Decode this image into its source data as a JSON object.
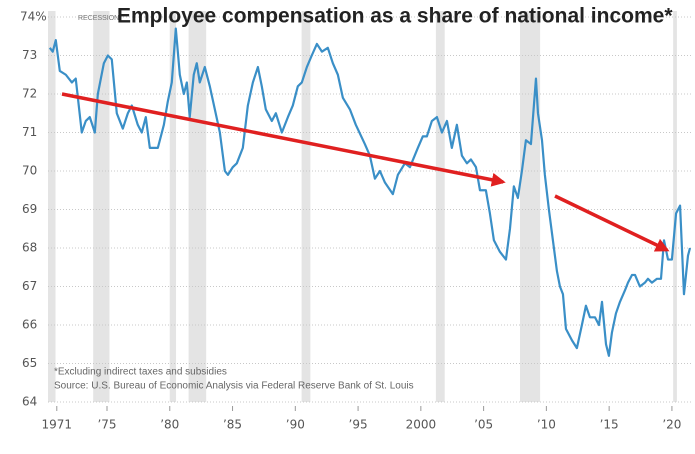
{
  "chart_data": {
    "type": "line",
    "title": "Employee compensation as a share of national income*",
    "recession_label": "RECESSION",
    "footnote": "*Excluding indirect taxes and subsidies",
    "source": "Source: U.S. Bureau of Economic Analysis via Federal Reserve Bank of St. Louis",
    "recessions": [
      [
        1969.9,
        1970.9
      ],
      [
        1973.9,
        1975.2
      ],
      [
        1980.0,
        1980.5
      ],
      [
        1981.5,
        1982.9
      ],
      [
        1990.5,
        1991.2
      ],
      [
        2001.2,
        2001.9
      ],
      [
        2007.9,
        2009.5
      ],
      [
        2020.1,
        2020.4
      ]
    ],
    "recession_color": "#e4e4e4",
    "grid": true,
    "xlim": [
      1970.3,
      2021.6
    ],
    "ylim": [
      64,
      74
    ],
    "xticks": [
      1971,
      {
        "value": 1975,
        "label": "’75"
      },
      {
        "value": 1980,
        "label": "’80"
      },
      {
        "value": 1985,
        "label": "’85"
      },
      {
        "value": 1990,
        "label": "’90"
      },
      {
        "value": 1995,
        "label": "’95"
      },
      2000,
      {
        "value": 2005,
        "label": "’05"
      },
      {
        "value": 2010,
        "label": "’10"
      },
      {
        "value": 2015,
        "label": "’15"
      },
      {
        "value": 2020,
        "label": "’20"
      }
    ],
    "yticks": [
      64,
      65,
      66,
      67,
      68,
      69,
      70,
      71,
      72,
      73,
      {
        "value": 74,
        "label": "74%"
      }
    ],
    "x": [
      1970.44,
      1970.68,
      1970.92,
      1971.24,
      1971.72,
      1972.2,
      1972.51,
      1972.99,
      1973.31,
      1973.63,
      1974.03,
      1974.27,
      1974.75,
      1975.07,
      1975.38,
      1975.78,
      1976.02,
      1976.26,
      1976.66,
      1976.98,
      1977.45,
      1977.77,
      1978.09,
      1978.41,
      1979.05,
      1979.53,
      1979.84,
      1980.16,
      1980.48,
      1980.8,
      1981.12,
      1981.36,
      1981.59,
      1981.91,
      1982.15,
      1982.39,
      1982.79,
      1983.19,
      1983.59,
      1983.99,
      1984.39,
      1984.63,
      1985.02,
      1985.34,
      1985.82,
      1986.22,
      1986.62,
      1987.02,
      1987.33,
      1987.65,
      1988.13,
      1988.45,
      1988.93,
      1989.41,
      1989.8,
      1990.2,
      1990.52,
      1990.92,
      1991.31,
      1991.72,
      1992.12,
      1992.59,
      1992.99,
      1993.39,
      1993.79,
      1994.35,
      1994.82,
      1995.54,
      1995.94,
      1996.34,
      1996.74,
      1997.14,
      1997.77,
      1998.17,
      1998.73,
      1999.13,
      1999.76,
      2000.16,
      2000.48,
      2000.88,
      2001.28,
      2001.68,
      2002.08,
      2002.47,
      2002.87,
      2003.27,
      2003.67,
      2003.99,
      2004.39,
      2004.71,
      2005.18,
      2005.5,
      2005.82,
      2006.3,
      2006.78,
      2007.1,
      2007.41,
      2007.73,
      2008.05,
      2008.37,
      2008.77,
      2009.17,
      2009.33,
      2009.65,
      2009.88,
      2010.2,
      2010.52,
      2010.84,
      2011.08,
      2011.32,
      2011.56,
      2012.04,
      2012.43,
      2012.83,
      2013.15,
      2013.47,
      2013.87,
      2014.19,
      2014.43,
      2014.75,
      2014.98,
      2015.22,
      2015.54,
      2015.86,
      2016.26,
      2016.5,
      2016.82,
      2017.06,
      2017.45,
      2017.85,
      2018.09,
      2018.41,
      2018.81,
      2019.13,
      2019.37,
      2019.69,
      2020.0,
      2020.33,
      2020.65,
      2020.96,
      2021.28,
      2021.44
    ],
    "series": [
      {
        "color": "#3a8fc7",
        "values": [
          73.2,
          73.1,
          73.4,
          72.6,
          72.5,
          72.3,
          72.4,
          71.0,
          71.3,
          71.4,
          71.0,
          72.0,
          72.8,
          73.0,
          72.9,
          71.5,
          71.3,
          71.1,
          71.5,
          71.7,
          71.2,
          71.0,
          71.4,
          70.6,
          70.6,
          71.2,
          71.8,
          72.3,
          73.7,
          72.5,
          72.0,
          72.3,
          71.4,
          72.5,
          72.8,
          72.3,
          72.7,
          72.2,
          71.6,
          71.0,
          70.0,
          69.9,
          70.1,
          70.2,
          70.6,
          71.7,
          72.3,
          72.7,
          72.2,
          71.6,
          71.3,
          71.5,
          71.0,
          71.4,
          71.7,
          72.2,
          72.3,
          72.7,
          73.0,
          73.3,
          73.1,
          73.2,
          72.8,
          72.5,
          71.9,
          71.6,
          71.2,
          70.7,
          70.4,
          69.8,
          70.0,
          69.7,
          69.4,
          69.9,
          70.2,
          70.1,
          70.6,
          70.9,
          70.9,
          71.3,
          71.4,
          71.0,
          71.3,
          70.6,
          71.2,
          70.4,
          70.2,
          70.3,
          70.1,
          69.5,
          69.5,
          68.9,
          68.2,
          67.9,
          67.7,
          68.5,
          69.6,
          69.3,
          70.0,
          70.8,
          70.7,
          72.4,
          71.5,
          70.8,
          69.9,
          69.0,
          68.2,
          67.4,
          67.0,
          66.8,
          65.9,
          65.6,
          65.4,
          66.0,
          66.5,
          66.2,
          66.2,
          66.0,
          66.6,
          65.5,
          65.2,
          65.8,
          66.3,
          66.6,
          66.9,
          67.1,
          67.3,
          67.3,
          67.0,
          67.1,
          67.2,
          67.1,
          67.2,
          67.2,
          68.2,
          67.7,
          67.7,
          68.9,
          69.1,
          66.8,
          67.8,
          68.0
        ]
      }
    ]
  }
}
